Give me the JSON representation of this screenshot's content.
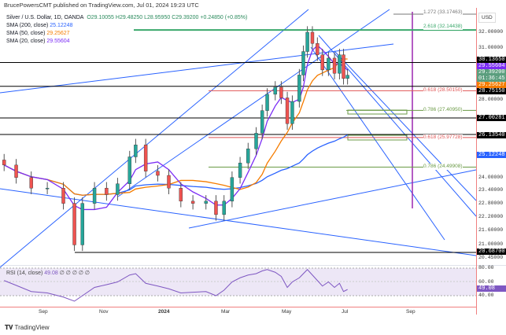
{
  "header": {
    "published": "BrucePowersCMT published on TradingView.com, Jul 01, 2024 19:23 UTC",
    "symbol": "Silver / U.S. Dollar, 1D, OANDA",
    "open": "O29.10055",
    "high": "H29.48250",
    "low": "L28.95950",
    "close": "C29.39200",
    "change": "+0.24850 (+0.85%)"
  },
  "indicators": [
    {
      "label": "SMA (200, close)",
      "value": "25.12248",
      "color": "#2962ff"
    },
    {
      "label": "SMA (50, close)",
      "value": "29.25627",
      "color": "#f57c00"
    },
    {
      "label": "SMA (20, close)",
      "value": "29.55604",
      "color": "#7b2cf5"
    }
  ],
  "rsi": {
    "label": "RSI (14, close)",
    "value": "49.08",
    "extra": "∅ ∅ ∅ ∅ ∅"
  },
  "axis": {
    "currency": "USD",
    "price_ticks": [
      "32.00000",
      "31.00000",
      "28.00000",
      "24.00000",
      "23.40000",
      "22.80000",
      "22.20000",
      "21.60000",
      "21.00000",
      "20.45000"
    ],
    "rsi_ticks": [
      "80.00",
      "60.00",
      "40.00"
    ],
    "time_ticks": [
      "Sep",
      "Nov",
      "2024",
      "Mar",
      "May",
      "Jul",
      "Sep"
    ]
  },
  "price_tags": [
    {
      "value": "30.13650",
      "color": "#000000"
    },
    {
      "value": "29.55604",
      "color": "#7b2cf5"
    },
    {
      "value": "29.39200",
      "sub": "01:36:45",
      "color": "#5b9e7e"
    },
    {
      "value": "29.25627",
      "color": "#f57c00"
    },
    {
      "value": "28.75150",
      "color": "#000000"
    },
    {
      "value": "27.00281",
      "color": "#000000"
    },
    {
      "value": "26.13540",
      "color": "#000000"
    },
    {
      "value": "25.12248",
      "color": "#2962ff"
    },
    {
      "value": "20.68700",
      "color": "#000000"
    },
    {
      "value": "49.08",
      "color": "#7e57c2"
    }
  ],
  "fib_labels": [
    {
      "text": "1.272 (33.17463)",
      "color": "#777777"
    },
    {
      "text": "2.618 (32.14438)",
      "color": "#3aa86b"
    },
    {
      "text": "0.618 (28.50150)",
      "color": "#e05555"
    },
    {
      "text": "0.786 (27.40950)",
      "color": "#6a9a45"
    },
    {
      "text": "0.618 (25.97728)",
      "color": "#e05555"
    },
    {
      "text": "0.786 (24.49908)",
      "color": "#6a9a45"
    }
  ],
  "footer": {
    "brand": "TradingView"
  },
  "chart_data": {
    "type": "candlestick",
    "title": "Silver / U.S. Dollar, 1D, OANDA",
    "ylabel": "USD",
    "ylim": [
      20.3,
      33.3
    ],
    "scale": "log",
    "dates": [
      "2023-07-24",
      "2023-08-05",
      "2023-08-20",
      "2023-09-05",
      "2023-09-21",
      "2023-10-02",
      "2023-10-10",
      "2023-10-22",
      "2023-11-03",
      "2023-11-14",
      "2023-11-26",
      "2023-12-02",
      "2023-12-12",
      "2023-12-24",
      "2024-01-04",
      "2024-01-16",
      "2024-01-28",
      "2024-02-10",
      "2024-02-20",
      "2024-02-28",
      "2024-03-07",
      "2024-03-15",
      "2024-03-23",
      "2024-03-31",
      "2024-04-06",
      "2024-04-11",
      "2024-04-19",
      "2024-04-25",
      "2024-05-01",
      "2024-05-06",
      "2024-05-13",
      "2024-05-17",
      "2024-05-21",
      "2024-05-26",
      "2024-05-31",
      "2024-06-05",
      "2024-06-11",
      "2024-06-17",
      "2024-06-22",
      "2024-06-26",
      "2024-06-30"
    ],
    "close": [
      24.6,
      24.0,
      23.5,
      23.5,
      22.8,
      21.0,
      22.8,
      23.5,
      23.2,
      23.7,
      25.0,
      25.6,
      24.3,
      24.1,
      23.5,
      22.9,
      22.8,
      22.9,
      22.3,
      22.9,
      24.0,
      24.7,
      25.4,
      26.2,
      27.4,
      28.3,
      28.7,
      28.1,
      26.7,
      27.9,
      29.4,
      30.8,
      32.0,
      31.3,
      30.6,
      29.7,
      30.4,
      29.5,
      30.6,
      29.2,
      29.39
    ],
    "rsi": [
      62,
      55,
      46,
      44,
      38,
      32,
      40,
      52,
      56,
      60,
      70,
      72,
      58,
      54,
      50,
      44,
      45,
      46,
      40,
      48,
      60,
      66,
      70,
      72,
      76,
      78,
      74,
      68,
      52,
      60,
      66,
      72,
      78,
      70,
      62,
      54,
      60,
      52,
      58,
      46,
      49
    ],
    "levels": [
      30.1365,
      28.7515,
      27.00281,
      26.1354,
      20.687
    ],
    "fib_prices": [
      33.17463,
      32.14438,
      28.5015,
      27.4095,
      25.97728,
      24.49908
    ]
  }
}
